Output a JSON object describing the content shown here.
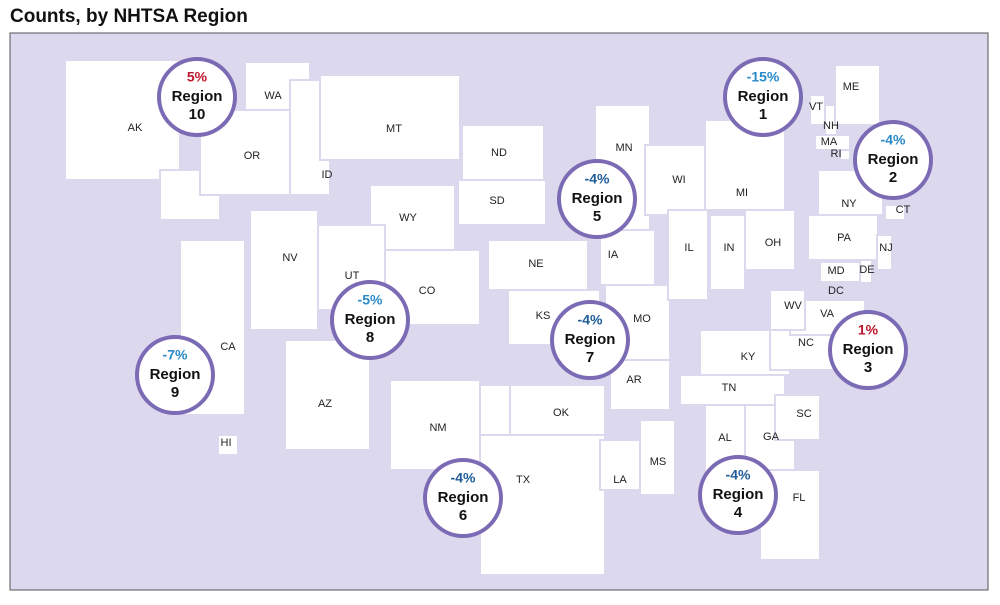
{
  "title": "Counts, by NHTSA Region",
  "states": [
    "AK",
    "WA",
    "OR",
    "ID",
    "MT",
    "ND",
    "SD",
    "WY",
    "NV",
    "UT",
    "CO",
    "CA",
    "AZ",
    "NM",
    "TX",
    "OK",
    "KS",
    "NE",
    "MN",
    "WI",
    "IA",
    "IL",
    "MO",
    "AR",
    "LA",
    "MS",
    "AL",
    "TN",
    "KY",
    "IN",
    "OH",
    "MI",
    "GA",
    "SC",
    "FL",
    "NC",
    "VA",
    "WV",
    "MD",
    "DE",
    "DC",
    "PA",
    "NJ",
    "NY",
    "CT",
    "RI",
    "MA",
    "NH",
    "VT",
    "ME",
    "HI"
  ],
  "regions": [
    {
      "change": "5%",
      "color": "#c0162d",
      "name": "Region",
      "number": "10"
    },
    {
      "change": "-15%",
      "color": "#2a8ac8",
      "name": "Region",
      "number": "1"
    },
    {
      "change": "-4%",
      "color": "#2a8ac8",
      "name": "Region",
      "number": "2"
    },
    {
      "change": "-4%",
      "color": "#1e5c98",
      "name": "Region",
      "number": "5"
    },
    {
      "change": "-7%",
      "color": "#2a8ac8",
      "name": "Region",
      "number": "9"
    },
    {
      "change": "-5%",
      "color": "#2a8ac8",
      "name": "Region",
      "number": "8"
    },
    {
      "change": "-4%",
      "color": "#1e5c98",
      "name": "Region",
      "number": "7"
    },
    {
      "change": "1%",
      "color": "#c0162d",
      "name": "Region",
      "number": "3"
    },
    {
      "change": "-4%",
      "color": "#1e5c98",
      "name": "Region",
      "number": "6"
    },
    {
      "change": "-4%",
      "color": "#1e5c98",
      "name": "Region",
      "number": "4"
    }
  ]
}
